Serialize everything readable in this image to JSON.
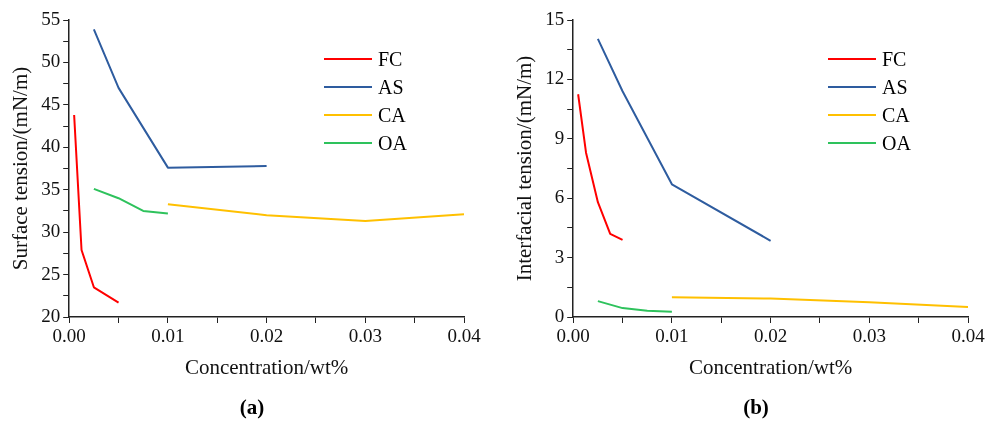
{
  "chart_data": [
    {
      "type": "line",
      "xlabel": "Concentration/wt%",
      "ylabel": "Surface tension/(mN/m)",
      "legend": "top right",
      "grid": false,
      "marker": "none",
      "line_style": "solid",
      "xlim": [
        0,
        0.04
      ],
      "xticks": [
        {
          "value": 0,
          "label": "0.00"
        },
        {
          "value": 0.005,
          "label": null
        },
        0.01,
        {
          "value": 0.015,
          "label": null
        },
        0.02,
        {
          "value": 0.025,
          "label": null
        },
        0.03,
        {
          "value": 0.035,
          "label": null
        },
        0.04
      ],
      "ylim": [
        20,
        55
      ],
      "yticks": [
        20,
        {
          "value": 22.5,
          "label": null
        },
        25,
        {
          "value": 27.5,
          "label": null
        },
        30,
        {
          "value": 32.5,
          "label": null
        },
        35,
        {
          "value": 37.5,
          "label": null
        },
        40,
        {
          "value": 42.5,
          "label": null
        },
        45,
        {
          "value": 47.5,
          "label": null
        },
        50,
        {
          "value": 52.5,
          "label": null
        },
        55
      ],
      "series": [
        {
          "name": "FC",
          "color": "#ff0000",
          "x": [
            0.0005,
            0.00125,
            0.0025,
            0.005
          ],
          "values": [
            43.8,
            27.9,
            23.5,
            21.7
          ]
        },
        {
          "name": "AS",
          "color": "#2e5c9f",
          "x": [
            0.0025,
            0.005,
            0.01,
            0.02
          ],
          "values": [
            53.9,
            47.0,
            37.6,
            37.8
          ]
        },
        {
          "name": "CA",
          "color": "#ffc000",
          "x": [
            0.01,
            0.02,
            0.03,
            0.04
          ],
          "values": [
            33.3,
            32.0,
            31.3,
            32.1
          ]
        },
        {
          "name": "OA",
          "color": "#2ec25c",
          "x": [
            0.0025,
            0.005,
            0.0075,
            0.01
          ],
          "values": [
            35.1,
            34.0,
            32.5,
            32.2
          ]
        }
      ],
      "annotations": [
        "(a)"
      ]
    },
    {
      "type": "line",
      "xlabel": "Concentration/wt%",
      "ylabel": "Interfacial tension/(mN/m)",
      "legend": "top right",
      "grid": false,
      "marker": "none",
      "line_style": "solid",
      "xlim": [
        0,
        0.04
      ],
      "xticks": [
        {
          "value": 0,
          "label": "0.00"
        },
        {
          "value": 0.005,
          "label": null
        },
        0.01,
        {
          "value": 0.015,
          "label": null
        },
        0.02,
        {
          "value": 0.025,
          "label": null
        },
        0.03,
        {
          "value": 0.035,
          "label": null
        },
        0.04
      ],
      "ylim": [
        0,
        15
      ],
      "yticks": [
        0,
        {
          "value": 1.5,
          "label": null
        },
        3,
        {
          "value": 4.5,
          "label": null
        },
        6,
        {
          "value": 7.5,
          "label": null
        },
        9,
        {
          "value": 10.5,
          "label": null
        },
        12,
        {
          "value": 13.5,
          "label": null
        },
        15
      ],
      "series": [
        {
          "name": "FC",
          "color": "#ff0000",
          "x": [
            0.0005,
            0.0013,
            0.0025,
            0.00375,
            0.005
          ],
          "values": [
            11.25,
            8.3,
            5.8,
            4.2,
            3.9
          ]
        },
        {
          "name": "AS",
          "color": "#2e5c9f",
          "x": [
            0.0025,
            0.005,
            0.01,
            0.02
          ],
          "values": [
            14.05,
            11.4,
            6.7,
            3.85
          ]
        },
        {
          "name": "CA",
          "color": "#ffc000",
          "x": [
            0.01,
            0.02,
            0.03,
            0.04
          ],
          "values": [
            1.0,
            0.93,
            0.75,
            0.5
          ]
        },
        {
          "name": "OA",
          "color": "#2ec25c",
          "x": [
            0.0025,
            0.005,
            0.0075,
            0.01
          ],
          "values": [
            0.8,
            0.45,
            0.32,
            0.27
          ]
        }
      ],
      "annotations": [
        "(b)"
      ]
    }
  ]
}
